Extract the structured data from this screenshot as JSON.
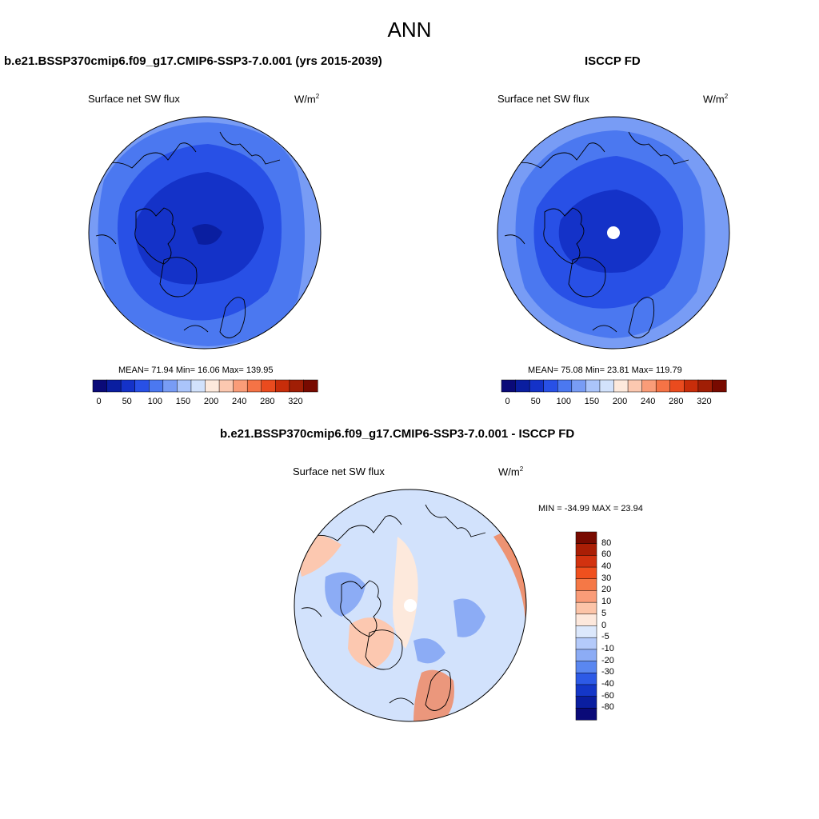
{
  "main_title": "ANN",
  "panel_left": {
    "title": "b.e21.BSSP370cmip6.f09_g17.CMIP6-SSP3-7.0.001 (yrs 2015-2039)",
    "variable": "Surface net SW flux",
    "units": "W/m",
    "units_exp": "2",
    "stats": "MEAN=  71.94  Min=  16.06  Max= 139.95"
  },
  "panel_right": {
    "title": "ISCCP FD",
    "variable": "Surface net SW flux",
    "units": "W/m",
    "units_exp": "2",
    "stats": "MEAN=  75.08  Min=  23.81  Max= 119.79"
  },
  "panel_diff": {
    "title": "b.e21.BSSP370cmip6.f09_g17.CMIP6-SSP3-7.0.001 - ISCCP FD",
    "variable": "Surface net SW flux",
    "units": "W/m",
    "units_exp": "2",
    "stats": "MIN = -34.99 MAX =  23.94"
  },
  "colorbar_abs": {
    "ticks": [
      "0",
      "50",
      "100",
      "150",
      "200",
      "240",
      "280",
      "320"
    ],
    "colors": [
      "#0a0a78",
      "#0a1ea0",
      "#1432c8",
      "#2850e6",
      "#4b78f0",
      "#789cf5",
      "#aac4fa",
      "#d2e2fc",
      "#fde9dc",
      "#fcc8b0",
      "#fa9c78",
      "#f57346",
      "#ea4b1e",
      "#c82d0a",
      "#a01e05",
      "#780a00"
    ]
  },
  "colorbar_diff": {
    "ticks": [
      "80",
      "60",
      "40",
      "30",
      "20",
      "10",
      "5",
      "0",
      "-5",
      "-10",
      "-20",
      "-30",
      "-40",
      "-60",
      "-80"
    ],
    "colors": [
      "#780a00",
      "#aa1e05",
      "#d2320f",
      "#f0501e",
      "#f57846",
      "#fa9c78",
      "#fcc4a8",
      "#fde8dc",
      "#dce8fc",
      "#b4cafa",
      "#8cacf5",
      "#5a87f0",
      "#2d5ae6",
      "#1437c8",
      "#0a1ea0",
      "#0a0a78"
    ]
  },
  "map_colors": {
    "abs_outer": "#789cf5",
    "abs_mid": "#4b78f0",
    "abs_inner": "#2850e6",
    "abs_core": "#1432c8",
    "diff_base": "#d2e2fc",
    "diff_warm": "#fcc8b0",
    "diff_cool": "#8cacf5",
    "diff_strong_warm": "#f57846"
  }
}
